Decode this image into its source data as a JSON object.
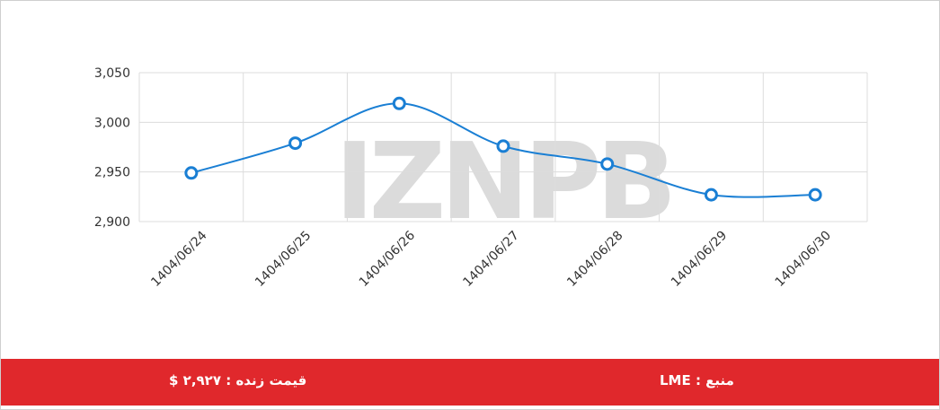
{
  "chart_data": {
    "type": "line",
    "categories": [
      "1404/06/24",
      "1404/06/25",
      "1404/06/26",
      "1404/06/27",
      "1404/06/28",
      "1404/06/29",
      "1404/06/30"
    ],
    "values": [
      2949,
      2979,
      3019,
      2976,
      2958,
      2927,
      2927
    ],
    "color": "#1a7fd4",
    "ylim": [
      2900,
      3050
    ],
    "yticks": [
      {
        "value": 2900,
        "label": "2,900"
      },
      {
        "value": 2950,
        "label": "2,950"
      },
      {
        "value": 3000,
        "label": "3,000"
      },
      {
        "value": 3050,
        "label": "3,050"
      }
    ],
    "grid": true
  },
  "watermark": "IZNPB",
  "footer": {
    "live_price": "قیمت زنده : ۲,۹۲۷ $",
    "source": "منبع : LME"
  }
}
